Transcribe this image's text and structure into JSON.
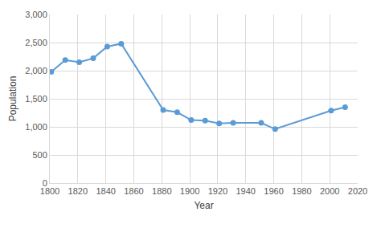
{
  "chart_data": {
    "type": "line",
    "x_label": "Year",
    "y_label": "Population",
    "x": [
      1801,
      1811,
      1821,
      1831,
      1841,
      1851,
      1881,
      1891,
      1901,
      1911,
      1921,
      1931,
      1951,
      1961,
      2001,
      2011
    ],
    "values": [
      1980,
      2190,
      2150,
      2220,
      2430,
      2480,
      1300,
      1260,
      1120,
      1110,
      1060,
      1070,
      1070,
      960,
      1290,
      1350
    ],
    "color": "#5b9bd5",
    "marker": "circle",
    "xlim": [
      1800,
      2020
    ],
    "xticks": [
      1800,
      1820,
      1840,
      1860,
      1880,
      1900,
      1920,
      1940,
      1960,
      1980,
      2000,
      2020
    ],
    "ylim": [
      0,
      3000
    ],
    "yticks": [
      0,
      500,
      {
        "value": 1000,
        "label": "1,000"
      },
      {
        "value": 1500,
        "label": "1,500"
      },
      {
        "value": 2000,
        "label": "2,000"
      },
      {
        "value": 2500,
        "label": "2,500"
      },
      {
        "value": 3000,
        "label": "3,000"
      }
    ],
    "grid": true
  }
}
